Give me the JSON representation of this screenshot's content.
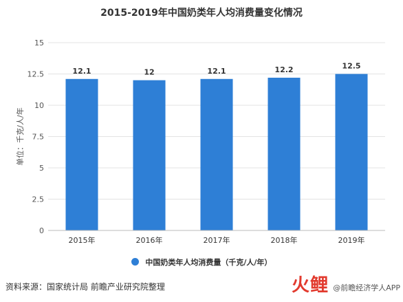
{
  "chart_data": {
    "type": "bar",
    "title": "2015-2019年中国奶类年人均消费量变化情况",
    "categories": [
      "2015年",
      "2016年",
      "2017年",
      "2018年",
      "2019年"
    ],
    "series": [
      {
        "name": "中国奶类年人均消费量（千克/人/年）",
        "values": [
          12.1,
          12,
          12.1,
          12.2,
          12.5
        ],
        "color": "#2e7fd6"
      }
    ],
    "data_labels": [
      "12.1",
      "12",
      "12.1",
      "12.2",
      "12.5"
    ],
    "ylabel": "单位：千克/人/年",
    "xlabel": "",
    "ylim": [
      0,
      15
    ],
    "yticks": [
      0,
      2.5,
      5,
      7.5,
      10,
      12.5,
      15
    ],
    "ytick_labels": [
      "0",
      "2.5",
      "5",
      "7.5",
      "10",
      "12.5",
      "15"
    ],
    "grid": true,
    "legend_position": "bottom"
  },
  "source": "资料来源：国家统计局 前瞻产业研究院整理",
  "watermark_logo": "火鲤",
  "watermark_app": "@前瞻经济学人APP"
}
